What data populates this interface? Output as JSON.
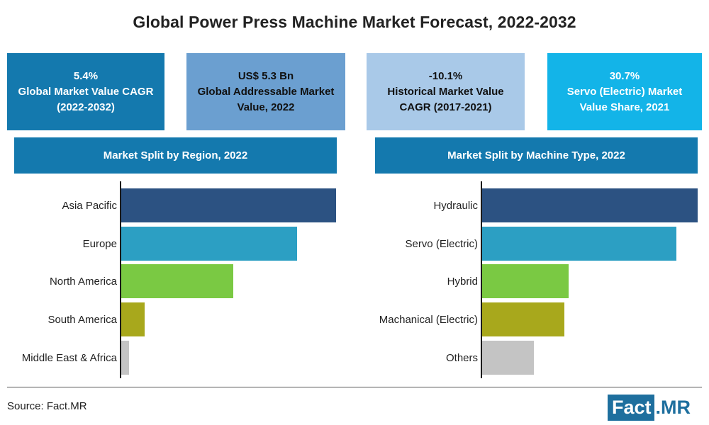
{
  "title": "Global Power Press Machine Market Forecast, 2022-2032",
  "kpis": [
    {
      "text": "5.4%\nGlobal Market Value CAGR\n(2022-2032)",
      "bg": "#1479ae",
      "color": "#ffffff"
    },
    {
      "text": "US$ 5.3 Bn\nGlobal Addressable Market\nValue, 2022",
      "bg": "#6b9fd0",
      "color": "#111111"
    },
    {
      "text": "-10.1%\nHistorical Market Value\nCAGR (2017-2021)",
      "bg": "#a9c9e8",
      "color": "#111111"
    },
    {
      "text": "30.7%\nServo (Electric) Market\nValue Share, 2021",
      "bg": "#13b4e8",
      "color": "#ffffff"
    }
  ],
  "chart_data": [
    {
      "type": "bar",
      "orientation": "horizontal",
      "title": "Market Split by Region, 2022",
      "categories": [
        "Asia Pacific",
        "Europe",
        "North America",
        "South America",
        "Middle East & Africa"
      ],
      "values": [
        100,
        82,
        52,
        11,
        3.5
      ],
      "colors": [
        "#2c5282",
        "#2c9fc3",
        "#7ac943",
        "#a8a81c",
        "#c4c4c4"
      ]
    },
    {
      "type": "bar",
      "orientation": "horizontal",
      "title": "Market Split by Machine Type, 2022",
      "categories": [
        "Hydraulic",
        "Servo (Electric)",
        "Hybrid",
        "Machanical (Electric)",
        "Others"
      ],
      "values": [
        100,
        90,
        40,
        38,
        24
      ],
      "colors": [
        "#2c5282",
        "#2c9fc3",
        "#7ac943",
        "#a8a81c",
        "#c4c4c4"
      ]
    }
  ],
  "source": "Source: Fact.MR",
  "logo": {
    "fact": "Fact",
    "dot": ".",
    "mr": "MR"
  }
}
